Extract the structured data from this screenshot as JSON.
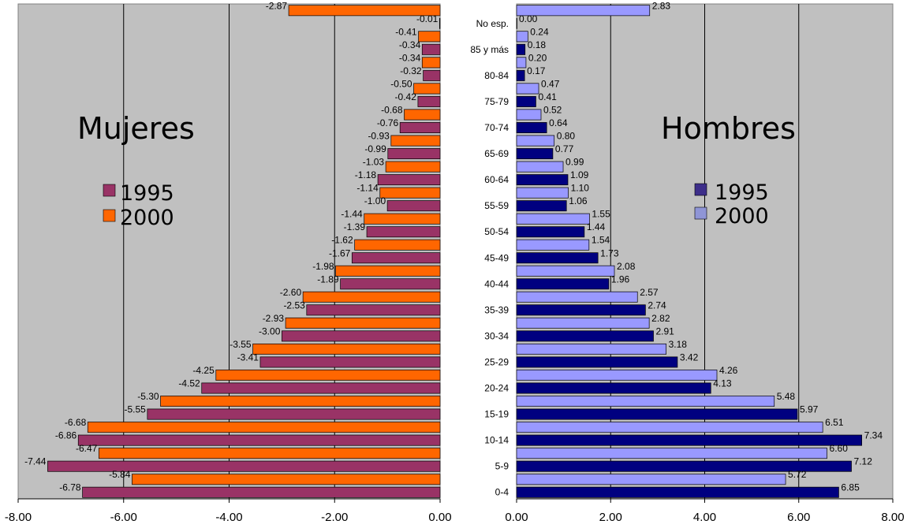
{
  "colors": {
    "plot_bg": "#c0c0c0",
    "women_1995": "#993366",
    "women_2000": "#ff6600",
    "men_1995": "#000080",
    "men_2000": "#9999ff",
    "men_1995_legend": "#3d2e8a",
    "men_2000_legend": "#8f95d6"
  },
  "chart_data": [
    {
      "type": "bar",
      "orientation": "horizontal",
      "title": "Mujeres",
      "xlim": [
        -8,
        0
      ],
      "xticks": [
        "-8.00",
        "-6.00",
        "-4.00",
        "-2.00",
        "0.00"
      ],
      "grid": true,
      "legend": {
        "position": "left-center",
        "entries": [
          "1995",
          "2000"
        ]
      },
      "bars": [
        {
          "series": "2000",
          "value": -2.87,
          "label": "-2.87"
        },
        {
          "series": "1995",
          "value": -0.01,
          "label": "-0.01"
        },
        {
          "series": "2000",
          "value": -0.41,
          "label": "-0.41"
        },
        {
          "series": "1995",
          "value": -0.34,
          "label": "-0.34"
        },
        {
          "series": "2000",
          "value": -0.34,
          "label": "-0.34"
        },
        {
          "series": "1995",
          "value": -0.32,
          "label": "-0.32"
        },
        {
          "series": "2000",
          "value": -0.5,
          "label": "-0.50"
        },
        {
          "series": "1995",
          "value": -0.42,
          "label": "-0.42"
        },
        {
          "series": "2000",
          "value": -0.68,
          "label": "-0.68"
        },
        {
          "series": "1995",
          "value": -0.76,
          "label": "-0.76"
        },
        {
          "series": "2000",
          "value": -0.93,
          "label": "-0.93"
        },
        {
          "series": "1995",
          "value": -0.99,
          "label": "-0.99"
        },
        {
          "series": "2000",
          "value": -1.03,
          "label": "-1.03"
        },
        {
          "series": "1995",
          "value": -1.18,
          "label": "-1.18"
        },
        {
          "series": "2000",
          "value": -1.14,
          "label": "-1.14"
        },
        {
          "series": "1995",
          "value": -1.0,
          "label": "-1.00"
        },
        {
          "series": "2000",
          "value": -1.44,
          "label": "-1.44"
        },
        {
          "series": "1995",
          "value": -1.39,
          "label": "-1.39"
        },
        {
          "series": "2000",
          "value": -1.62,
          "label": "-1.62"
        },
        {
          "series": "1995",
          "value": -1.67,
          "label": "-1.67"
        },
        {
          "series": "2000",
          "value": -1.98,
          "label": "-1.98"
        },
        {
          "series": "1995",
          "value": -1.89,
          "label": "-1.89"
        },
        {
          "series": "2000",
          "value": -2.6,
          "label": "-2.60"
        },
        {
          "series": "1995",
          "value": -2.53,
          "label": "-2.53"
        },
        {
          "series": "2000",
          "value": -2.93,
          "label": "-2.93"
        },
        {
          "series": "1995",
          "value": -3.0,
          "label": "-3.00"
        },
        {
          "series": "2000",
          "value": -3.55,
          "label": "-3.55"
        },
        {
          "series": "1995",
          "value": -3.41,
          "label": "-3.41"
        },
        {
          "series": "2000",
          "value": -4.25,
          "label": "-4.25"
        },
        {
          "series": "1995",
          "value": -4.52,
          "label": "-4.52"
        },
        {
          "series": "2000",
          "value": -5.3,
          "label": "-5.30"
        },
        {
          "series": "1995",
          "value": -5.55,
          "label": "-5.55"
        },
        {
          "series": "2000",
          "value": -6.68,
          "label": "-6.68"
        },
        {
          "series": "1995",
          "value": -6.86,
          "label": "-6.86"
        },
        {
          "series": "2000",
          "value": -6.47,
          "label": "-6.47"
        },
        {
          "series": "1995",
          "value": -7.44,
          "label": "-7.44"
        },
        {
          "series": "2000",
          "value": -5.84,
          "label": "-5.84"
        },
        {
          "series": "1995",
          "value": -6.78,
          "label": "-6.78"
        }
      ]
    },
    {
      "type": "bar",
      "orientation": "horizontal",
      "title": "Hombres",
      "xlim": [
        0,
        8
      ],
      "xticks": [
        "0.00",
        "2.00",
        "4.00",
        "6.00",
        "8.00"
      ],
      "grid": true,
      "legend": {
        "position": "right-center",
        "entries": [
          "1995",
          "2000"
        ]
      },
      "bars": [
        {
          "series": "2000",
          "value": 2.83,
          "label": "2.83",
          "category": ""
        },
        {
          "series": "1995",
          "value": 0.0,
          "label": "0.00",
          "category": "No esp."
        },
        {
          "series": "2000",
          "value": 0.24,
          "label": "0.24",
          "category": ""
        },
        {
          "series": "1995",
          "value": 0.18,
          "label": "0.18",
          "category": "85 y más"
        },
        {
          "series": "2000",
          "value": 0.2,
          "label": "0.20",
          "category": ""
        },
        {
          "series": "1995",
          "value": 0.17,
          "label": "0.17",
          "category": "80-84"
        },
        {
          "series": "2000",
          "value": 0.47,
          "label": "0.47",
          "category": ""
        },
        {
          "series": "1995",
          "value": 0.41,
          "label": "0.41",
          "category": "75-79"
        },
        {
          "series": "2000",
          "value": 0.52,
          "label": "0.52",
          "category": ""
        },
        {
          "series": "1995",
          "value": 0.64,
          "label": "0.64",
          "category": "70-74"
        },
        {
          "series": "2000",
          "value": 0.8,
          "label": "0.80",
          "category": ""
        },
        {
          "series": "1995",
          "value": 0.77,
          "label": "0.77",
          "category": "65-69"
        },
        {
          "series": "2000",
          "value": 0.99,
          "label": "0.99",
          "category": ""
        },
        {
          "series": "1995",
          "value": 1.09,
          "label": "1.09",
          "category": "60-64"
        },
        {
          "series": "2000",
          "value": 1.1,
          "label": "1.10",
          "category": ""
        },
        {
          "series": "1995",
          "value": 1.06,
          "label": "1.06",
          "category": "55-59"
        },
        {
          "series": "2000",
          "value": 1.55,
          "label": "1.55",
          "category": ""
        },
        {
          "series": "1995",
          "value": 1.44,
          "label": "1.44",
          "category": "50-54"
        },
        {
          "series": "2000",
          "value": 1.54,
          "label": "1.54",
          "category": ""
        },
        {
          "series": "1995",
          "value": 1.73,
          "label": "1.73",
          "category": "45-49"
        },
        {
          "series": "2000",
          "value": 2.08,
          "label": "2.08",
          "category": ""
        },
        {
          "series": "1995",
          "value": 1.96,
          "label": "1.96",
          "category": "40-44"
        },
        {
          "series": "2000",
          "value": 2.57,
          "label": "2.57",
          "category": ""
        },
        {
          "series": "1995",
          "value": 2.74,
          "label": "2.74",
          "category": "35-39"
        },
        {
          "series": "2000",
          "value": 2.82,
          "label": "2.82",
          "category": ""
        },
        {
          "series": "1995",
          "value": 2.91,
          "label": "2.91",
          "category": "30-34"
        },
        {
          "series": "2000",
          "value": 3.18,
          "label": "3.18",
          "category": ""
        },
        {
          "series": "1995",
          "value": 3.42,
          "label": "3.42",
          "category": "25-29"
        },
        {
          "series": "2000",
          "value": 4.26,
          "label": "4.26",
          "category": ""
        },
        {
          "series": "1995",
          "value": 4.13,
          "label": "4.13",
          "category": "20-24"
        },
        {
          "series": "2000",
          "value": 5.48,
          "label": "5.48",
          "category": ""
        },
        {
          "series": "1995",
          "value": 5.97,
          "label": "5.97",
          "category": "15-19"
        },
        {
          "series": "2000",
          "value": 6.51,
          "label": "6.51",
          "category": ""
        },
        {
          "series": "1995",
          "value": 7.34,
          "label": "7.34",
          "category": "10-14"
        },
        {
          "series": "2000",
          "value": 6.6,
          "label": "6.60",
          "category": ""
        },
        {
          "series": "1995",
          "value": 7.12,
          "label": "7.12",
          "category": "5-9"
        },
        {
          "series": "2000",
          "value": 5.72,
          "label": "5.72",
          "category": ""
        },
        {
          "series": "1995",
          "value": 6.85,
          "label": "6.85",
          "category": "0-4"
        }
      ]
    }
  ]
}
